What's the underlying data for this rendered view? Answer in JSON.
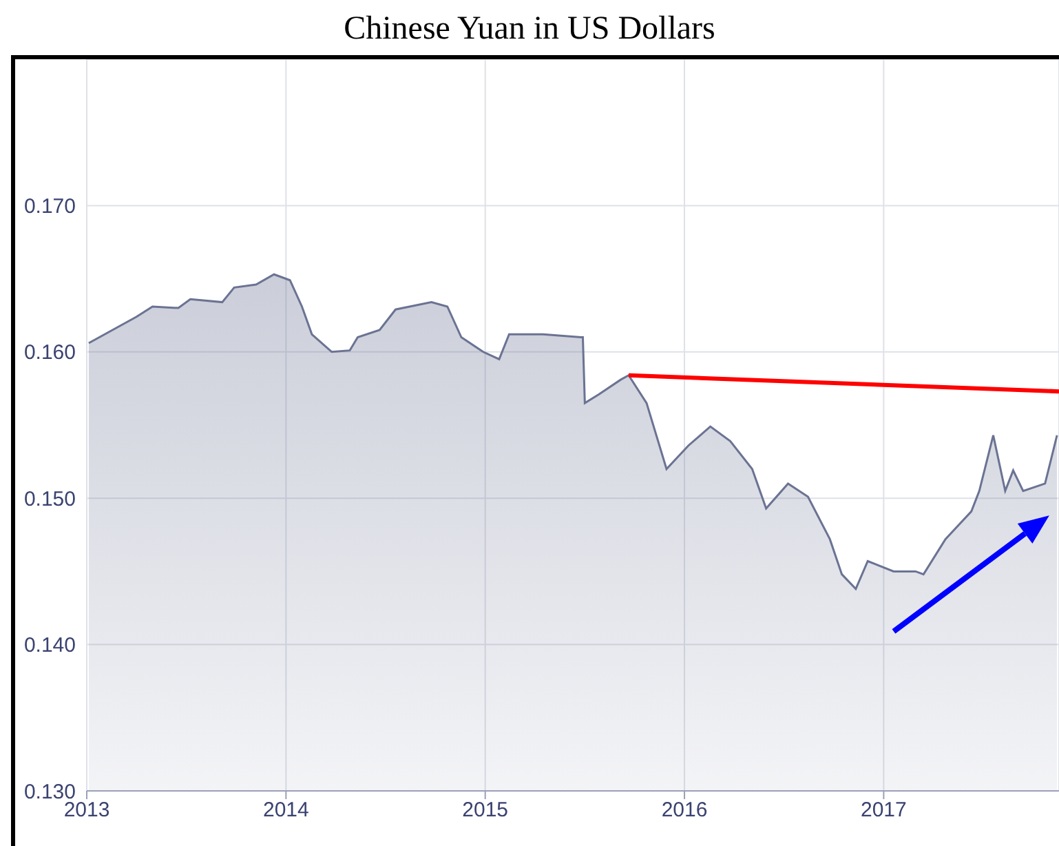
{
  "chart_data": {
    "type": "area",
    "title": "Chinese Yuan in US Dollars",
    "xlim": [
      2013,
      2017.88
    ],
    "xticks": [
      2013,
      2014,
      2015,
      2016,
      2017
    ],
    "ylim": [
      0.13,
      0.18
    ],
    "yticks": [
      {
        "value": 0.13,
        "label": "0.130"
      },
      {
        "value": 0.14,
        "label": "0.140"
      },
      {
        "value": 0.15,
        "label": "0.150"
      },
      {
        "value": 0.16,
        "label": "0.160"
      },
      {
        "value": 0.17,
        "label": "0.170"
      }
    ],
    "grid": true,
    "series": [
      {
        "color": "#6b7393",
        "x": [
          2013.01,
          2013.25,
          2013.33,
          2013.46,
          2013.52,
          2013.68,
          2013.74,
          2013.85,
          2013.94,
          2014.02,
          2014.08,
          2014.13,
          2014.23,
          2014.32,
          2014.36,
          2014.47,
          2014.55,
          2014.73,
          2014.81,
          2014.88,
          2014.99,
          2015.07,
          2015.12,
          2015.29,
          2015.48,
          2015.49,
          2015.5,
          2015.57,
          2015.68,
          2015.72,
          2015.81,
          2015.91,
          2016.02,
          2016.13,
          2016.23,
          2016.34,
          2016.41,
          2016.52,
          2016.62,
          2016.73,
          2016.79,
          2016.86,
          2016.92,
          2017.05,
          2017.16,
          2017.2,
          2017.31,
          2017.44,
          2017.48,
          2017.55,
          2017.61,
          2017.65,
          2017.7,
          2017.81,
          2017.87
        ],
        "values": [
          0.1606,
          0.1624,
          0.1631,
          0.163,
          0.1636,
          0.1634,
          0.1644,
          0.1646,
          0.1653,
          0.1649,
          0.1631,
          0.1612,
          0.16,
          0.1601,
          0.161,
          0.1615,
          0.1629,
          0.1634,
          0.1631,
          0.161,
          0.16,
          0.1595,
          0.1612,
          0.1612,
          0.161,
          0.161,
          0.1565,
          0.1571,
          0.1581,
          0.1584,
          0.1565,
          0.152,
          0.1536,
          0.1549,
          0.1539,
          0.152,
          0.1493,
          0.151,
          0.1501,
          0.1472,
          0.1448,
          0.1438,
          0.1457,
          0.145,
          0.145,
          0.1448,
          0.1472,
          0.1491,
          0.1505,
          0.1543,
          0.1505,
          0.1519,
          0.1505,
          0.151,
          0.1543
        ]
      },
      {
        "type": "line",
        "color": "#ff0000",
        "x": [
          2015.72,
          2017.88
        ],
        "values": [
          0.1584,
          0.1573
        ]
      }
    ]
  }
}
